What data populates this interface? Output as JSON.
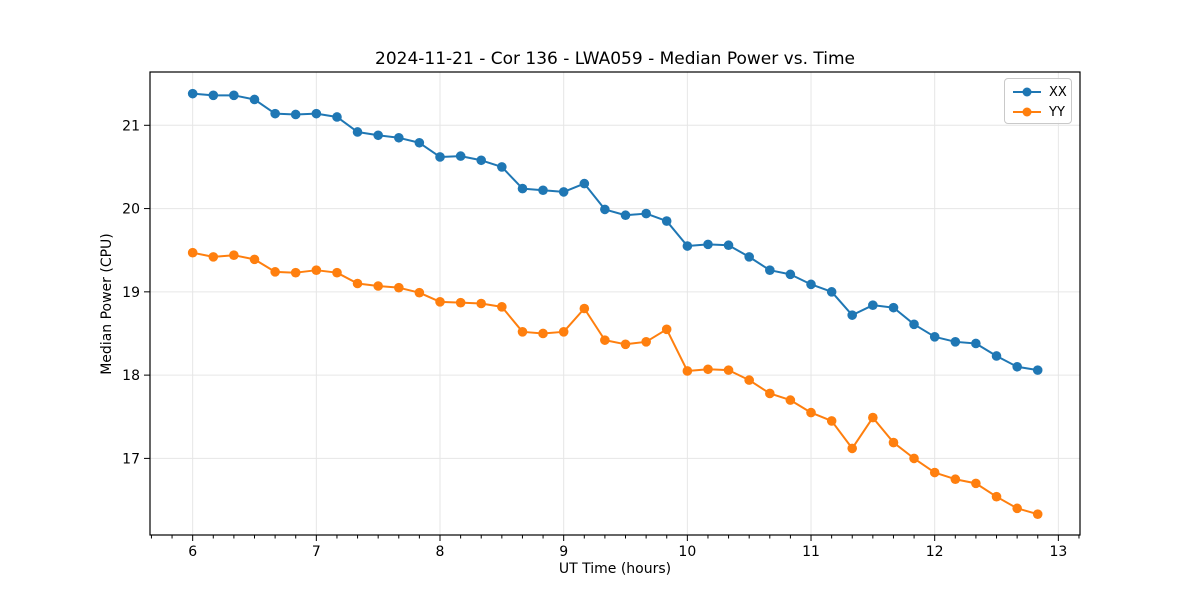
{
  "figure": {
    "title": "2024-11-21 - Cor 136 - LWA059 - Median Power vs. Time",
    "xlabel": "UT Time (hours)",
    "ylabel": "Median Power (CPU)"
  },
  "chart_data": {
    "type": "line",
    "title": "2024-11-21 - Cor 136 - LWA059 - Median Power vs. Time",
    "xlabel": "UT Time (hours)",
    "ylabel": "Median Power (CPU)",
    "marker": "circle",
    "grid": true,
    "grid_color": "#e6e6e6",
    "legend_position": "upper right",
    "xlim": [
      5.655,
      13.175
    ],
    "ylim": [
      16.08,
      21.64
    ],
    "xticks": [
      6,
      7,
      8,
      9,
      10,
      11,
      12,
      13
    ],
    "yticks": [
      17,
      18,
      19,
      20,
      21
    ],
    "x_minor_tick_step": 0.16667,
    "x": [
      6.0,
      6.167,
      6.333,
      6.5,
      6.667,
      6.833,
      7.0,
      7.167,
      7.333,
      7.5,
      7.667,
      7.833,
      8.0,
      8.167,
      8.333,
      8.5,
      8.667,
      8.833,
      9.0,
      9.167,
      9.333,
      9.5,
      9.667,
      9.833,
      10.0,
      10.167,
      10.333,
      10.5,
      10.667,
      10.833,
      11.0,
      11.167,
      11.333,
      11.5,
      11.667,
      11.833,
      12.0,
      12.167,
      12.333,
      12.5,
      12.667,
      12.833
    ],
    "series": [
      {
        "name": "XX",
        "color": "#1f77b4",
        "values": [
          21.38,
          21.36,
          21.36,
          21.31,
          21.14,
          21.13,
          21.14,
          21.1,
          20.92,
          20.88,
          20.85,
          20.79,
          20.62,
          20.63,
          20.58,
          20.5,
          20.24,
          20.22,
          20.2,
          20.3,
          19.99,
          19.92,
          19.94,
          19.85,
          19.55,
          19.57,
          19.56,
          19.42,
          19.26,
          19.21,
          19.09,
          19.0,
          18.72,
          18.84,
          18.81,
          18.61,
          18.46,
          18.4,
          18.38,
          18.23,
          18.1,
          18.06
        ]
      },
      {
        "name": "YY",
        "color": "#ff7f0e",
        "values": [
          19.47,
          19.42,
          19.44,
          19.39,
          19.24,
          19.23,
          19.26,
          19.23,
          19.1,
          19.07,
          19.05,
          18.99,
          18.88,
          18.87,
          18.86,
          18.82,
          18.52,
          18.5,
          18.52,
          18.8,
          18.42,
          18.37,
          18.4,
          18.55,
          18.05,
          18.07,
          18.06,
          17.94,
          17.78,
          17.7,
          17.55,
          17.45,
          17.12,
          17.49,
          17.19,
          17.0,
          16.83,
          16.75,
          16.7,
          16.54,
          16.4,
          16.33
        ]
      }
    ]
  }
}
